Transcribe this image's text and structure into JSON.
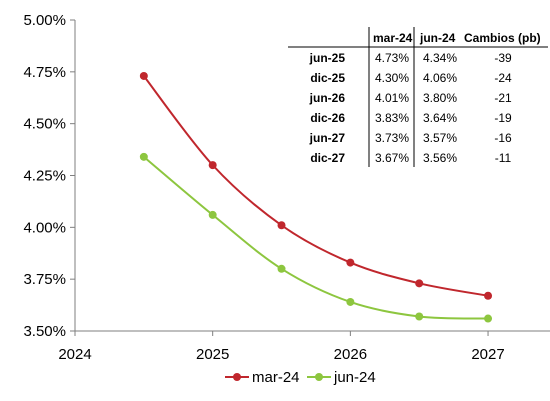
{
  "chart_data": {
    "type": "line",
    "x": [
      2024.5,
      2025,
      2025.5,
      2026,
      2026.5,
      2027
    ],
    "xlim": [
      2024,
      2027.45
    ],
    "x_ticks": [
      2024,
      2025,
      2026,
      2027
    ],
    "x_tick_labels": [
      "2024",
      "2025",
      "2026",
      "2027"
    ],
    "ylim": [
      3.5,
      5.0
    ],
    "y_ticks": [
      3.5,
      3.75,
      4.0,
      4.25,
      4.5,
      4.75,
      5.0
    ],
    "y_tick_labels": [
      "3.50%",
      "3.75%",
      "4.00%",
      "4.25%",
      "4.50%",
      "4.75%",
      "5.00%"
    ],
    "series": [
      {
        "name": "mar-24",
        "color": "#c0272d",
        "values": [
          4.73,
          4.3,
          4.01,
          3.83,
          3.73,
          3.67
        ]
      },
      {
        "name": "jun-24",
        "color": "#8dc63f",
        "values": [
          4.34,
          4.06,
          3.8,
          3.64,
          3.57,
          3.56
        ]
      }
    ],
    "grid": false,
    "legend_position": "bottom-center",
    "table": {
      "headers": [
        "",
        "mar-24",
        "jun-24",
        "Cambios (pb)"
      ],
      "rows": [
        [
          "jun-25",
          "4.73%",
          "4.34%",
          "-39"
        ],
        [
          "dic-25",
          "4.30%",
          "4.06%",
          "-24"
        ],
        [
          "jun-26",
          "4.01%",
          "3.80%",
          "-21"
        ],
        [
          "dic-26",
          "3.83%",
          "3.64%",
          "-19"
        ],
        [
          "jun-27",
          "3.73%",
          "3.57%",
          "-16"
        ],
        [
          "dic-27",
          "3.67%",
          "3.56%",
          "-11"
        ]
      ]
    }
  }
}
